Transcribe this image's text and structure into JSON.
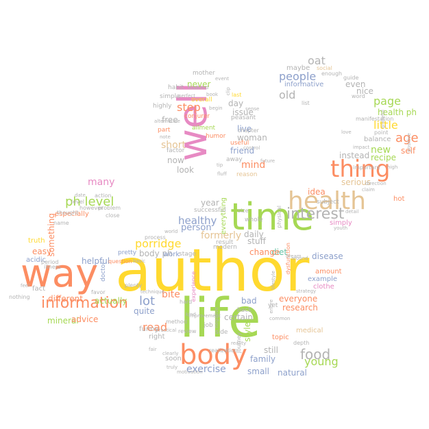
{
  "palette": {
    "pink": "#e78ac3",
    "orange": "#fc8d62",
    "green": "#a6d854",
    "yellow": "#ffd92f",
    "tan": "#e5c494",
    "blue": "#8da0cb",
    "gray": "#b3b3b3",
    "teal": "#66c2a5"
  },
  "words": [
    {
      "text": "author",
      "color": "yellow"
    },
    {
      "text": "life",
      "color": "green"
    },
    {
      "text": "way",
      "color": "orange"
    },
    {
      "text": "well",
      "color": "pink"
    },
    {
      "text": "time",
      "color": "green"
    },
    {
      "text": "body",
      "color": "orange"
    },
    {
      "text": "health",
      "color": "tan"
    },
    {
      "text": "thing",
      "color": "orange"
    },
    {
      "text": "information",
      "color": "orange"
    },
    {
      "text": "interest",
      "color": "gray"
    },
    {
      "text": "porridge",
      "color": "yellow"
    },
    {
      "text": "ph level",
      "color": "green"
    },
    {
      "text": "food",
      "color": "gray"
    },
    {
      "text": "little",
      "color": "yellow"
    },
    {
      "text": "step",
      "color": "orange"
    },
    {
      "text": "many",
      "color": "pink"
    },
    {
      "text": "age",
      "color": "orange"
    },
    {
      "text": "page",
      "color": "green"
    },
    {
      "text": "new",
      "color": "green"
    },
    {
      "text": "old",
      "color": "gray"
    },
    {
      "text": "people",
      "color": "blue"
    },
    {
      "text": "oat",
      "color": "gray"
    },
    {
      "text": "lot",
      "color": "blue"
    },
    {
      "text": "short",
      "color": "tan"
    },
    {
      "text": "read",
      "color": "orange"
    },
    {
      "text": "young",
      "color": "green"
    },
    {
      "text": "exercise",
      "color": "blue"
    },
    {
      "text": "healthy",
      "color": "blue"
    },
    {
      "text": "diet",
      "color": "teal"
    },
    {
      "text": "mind",
      "color": "orange"
    },
    {
      "text": "friend",
      "color": "blue"
    },
    {
      "text": "year",
      "color": "gray"
    },
    {
      "text": "person",
      "color": "blue"
    },
    {
      "text": "formerly",
      "color": "tan"
    },
    {
      "text": "health ph",
      "color": "green"
    },
    {
      "text": "disease",
      "color": "blue"
    },
    {
      "text": "everyone",
      "color": "orange"
    },
    {
      "text": "bite",
      "color": "orange"
    },
    {
      "text": "helpful",
      "color": "blue"
    },
    {
      "text": "different",
      "color": "orange"
    },
    {
      "text": "something",
      "color": "orange"
    },
    {
      "text": "easy",
      "color": "orange"
    },
    {
      "text": "even",
      "color": "gray"
    },
    {
      "text": "serious",
      "color": "tan"
    },
    {
      "text": "small",
      "color": "blue"
    },
    {
      "text": "never",
      "color": "green"
    },
    {
      "text": "day",
      "color": "gray"
    },
    {
      "text": "woman",
      "color": "gray"
    },
    {
      "text": "now",
      "color": "gray"
    },
    {
      "text": "look",
      "color": "gray"
    },
    {
      "text": "free",
      "color": "gray"
    },
    {
      "text": "nice",
      "color": "gray"
    },
    {
      "text": "self",
      "color": "orange"
    },
    {
      "text": "balance",
      "color": "gray"
    },
    {
      "text": "recipe",
      "color": "green"
    },
    {
      "text": "hot",
      "color": "orange"
    },
    {
      "text": "idea",
      "color": "orange"
    },
    {
      "text": "certain",
      "color": "gray"
    },
    {
      "text": "style",
      "color": "green"
    },
    {
      "text": "still",
      "color": "gray"
    },
    {
      "text": "family",
      "color": "blue"
    },
    {
      "text": "natural",
      "color": "blue"
    },
    {
      "text": "research",
      "color": "orange"
    },
    {
      "text": "mineral",
      "color": "green"
    },
    {
      "text": "advice",
      "color": "orange"
    },
    {
      "text": "quite",
      "color": "blue"
    },
    {
      "text": "actually",
      "color": "green"
    },
    {
      "text": "body ph",
      "color": "gray"
    },
    {
      "text": "change",
      "color": "orange"
    },
    {
      "text": "daily",
      "color": "gray"
    },
    {
      "text": "stuff",
      "color": "gray"
    },
    {
      "text": "bad",
      "color": "blue"
    },
    {
      "text": "live",
      "color": "blue"
    },
    {
      "text": "issue",
      "color": "gray"
    },
    {
      "text": "everything",
      "color": "green"
    },
    {
      "text": "instead",
      "color": "gray"
    },
    {
      "text": "maybe",
      "color": "gray"
    },
    {
      "text": "informative",
      "color": "blue"
    },
    {
      "text": "fact",
      "color": "gray"
    },
    {
      "text": "especially",
      "color": "orange"
    },
    {
      "text": "acidic",
      "color": "blue"
    },
    {
      "text": "truth",
      "color": "yellow"
    },
    {
      "text": "work",
      "color": "blue"
    },
    {
      "text": "funny",
      "color": "gray"
    },
    {
      "text": "right",
      "color": "gray"
    },
    {
      "text": "soon",
      "color": "gray"
    },
    {
      "text": "example",
      "color": "blue"
    },
    {
      "text": "clothe",
      "color": "pink"
    },
    {
      "text": "amount",
      "color": "orange"
    },
    {
      "text": "medical",
      "color": "tan"
    },
    {
      "text": "topic",
      "color": "orange"
    },
    {
      "text": "subject",
      "color": "gray"
    },
    {
      "text": "simply",
      "color": "pink"
    },
    {
      "text": "mother",
      "color": "gray"
    },
    {
      "text": "simple",
      "color": "gray"
    },
    {
      "text": "habit",
      "color": "gray"
    },
    {
      "text": "highly",
      "color": "gray"
    },
    {
      "text": "part",
      "color": "orange"
    },
    {
      "text": "factor",
      "color": "gray"
    },
    {
      "text": "successful",
      "color": "gray"
    },
    {
      "text": "level",
      "color": "gray"
    },
    {
      "text": "action",
      "color": "gray"
    },
    {
      "text": "however",
      "color": "gray"
    },
    {
      "text": "thought",
      "color": "gray"
    },
    {
      "text": "problem",
      "color": "gray"
    },
    {
      "text": "close",
      "color": "gray"
    },
    {
      "text": "name",
      "color": "gray"
    },
    {
      "text": "illness",
      "color": "gray"
    },
    {
      "text": "period",
      "color": "gray"
    },
    {
      "text": "nothing",
      "color": "gray"
    },
    {
      "text": "doctor",
      "color": "blue"
    },
    {
      "text": "question",
      "color": "orange"
    },
    {
      "text": "favor",
      "color": "gray"
    },
    {
      "text": "method",
      "color": "gray"
    },
    {
      "text": "review",
      "color": "gray"
    },
    {
      "text": "pretty",
      "color": "blue"
    },
    {
      "text": "modern",
      "color": "gray"
    },
    {
      "text": "result",
      "color": "gray"
    },
    {
      "text": "whole",
      "color": "gray"
    },
    {
      "text": "size",
      "color": "gray"
    },
    {
      "text": "useful",
      "color": "orange"
    },
    {
      "text": "humor",
      "color": "orange"
    },
    {
      "text": "job",
      "color": "gray"
    },
    {
      "text": "side",
      "color": "gray"
    },
    {
      "text": "back",
      "color": "gray"
    },
    {
      "text": "yet",
      "color": "gray"
    },
    {
      "text": "journey",
      "color": "gray"
    },
    {
      "text": "conjurer",
      "color": "orange"
    },
    {
      "text": "ailment",
      "color": "green"
    },
    {
      "text": "overall",
      "color": "yellow"
    },
    {
      "text": "peasant",
      "color": "gray"
    },
    {
      "text": "chapter",
      "color": "gray"
    },
    {
      "text": "last",
      "color": "yellow"
    },
    {
      "text": "away",
      "color": "gray"
    },
    {
      "text": "reason",
      "color": "tan"
    },
    {
      "text": "social",
      "color": "tan"
    },
    {
      "text": "list",
      "color": "gray"
    },
    {
      "text": "word",
      "color": "gray"
    },
    {
      "text": "point",
      "color": "gray"
    },
    {
      "text": "guide",
      "color": "gray"
    },
    {
      "text": "enough",
      "color": "gray"
    },
    {
      "text": "important",
      "color": "gray"
    },
    {
      "text": "detail",
      "color": "gray"
    },
    {
      "text": "youth",
      "color": "gray"
    },
    {
      "text": "manifestation",
      "color": "gray"
    },
    {
      "text": "strategy",
      "color": "gray"
    },
    {
      "text": "realization",
      "color": "gray"
    },
    {
      "text": "reality",
      "color": "gray"
    },
    {
      "text": "depth",
      "color": "gray"
    },
    {
      "text": "motivation",
      "color": "gray"
    },
    {
      "text": "truly",
      "color": "gray"
    },
    {
      "text": "clearly",
      "color": "gray"
    },
    {
      "text": "plenty",
      "color": "gray"
    },
    {
      "text": "dysfunction",
      "color": "orange"
    },
    {
      "text": "impact",
      "color": "gray"
    },
    {
      "text": "stage",
      "color": "gray"
    },
    {
      "text": "process",
      "color": "gray"
    },
    {
      "text": "experience",
      "color": "pink"
    },
    {
      "text": "alternative",
      "color": "gray"
    },
    {
      "text": "husband",
      "color": "gray"
    },
    {
      "text": "perfect",
      "color": "gray"
    },
    {
      "text": "begin",
      "color": "gray"
    },
    {
      "text": "sense",
      "color": "gray"
    },
    {
      "text": "entire",
      "color": "gray"
    },
    {
      "text": "world",
      "color": "gray"
    },
    {
      "text": "date",
      "color": "gray"
    },
    {
      "text": "event",
      "color": "gray"
    },
    {
      "text": "book",
      "color": "gray"
    },
    {
      "text": "clip",
      "color": "gray"
    },
    {
      "text": "physical",
      "color": "gray"
    },
    {
      "text": "negative",
      "color": "gray"
    },
    {
      "text": "lifestyle",
      "color": "gray"
    },
    {
      "text": "practical",
      "color": "gray"
    },
    {
      "text": "technique",
      "color": "gray"
    },
    {
      "text": "improvement",
      "color": "gray"
    },
    {
      "text": "control",
      "color": "gray"
    },
    {
      "text": "future",
      "color": "gray"
    },
    {
      "text": "tip",
      "color": "gray"
    },
    {
      "text": "love",
      "color": "gray"
    },
    {
      "text": "claim",
      "color": "gray"
    },
    {
      "text": "direction",
      "color": "gray"
    },
    {
      "text": "grateful",
      "color": "gray"
    },
    {
      "text": "positive",
      "color": "gray"
    },
    {
      "text": "high",
      "color": "gray"
    },
    {
      "text": "fluff",
      "color": "gray"
    },
    {
      "text": "hard",
      "color": "gray"
    },
    {
      "text": "fair",
      "color": "gray"
    },
    {
      "text": "feel",
      "color": "gray"
    },
    {
      "text": "note",
      "color": "gray"
    },
    {
      "text": "common",
      "color": "gray"
    },
    {
      "text": "around",
      "color": "gray"
    },
    {
      "text": "dream",
      "color": "gray"
    },
    {
      "text": "basic",
      "color": "gray"
    },
    {
      "text": "kind",
      "color": "gray"
    }
  ]
}
